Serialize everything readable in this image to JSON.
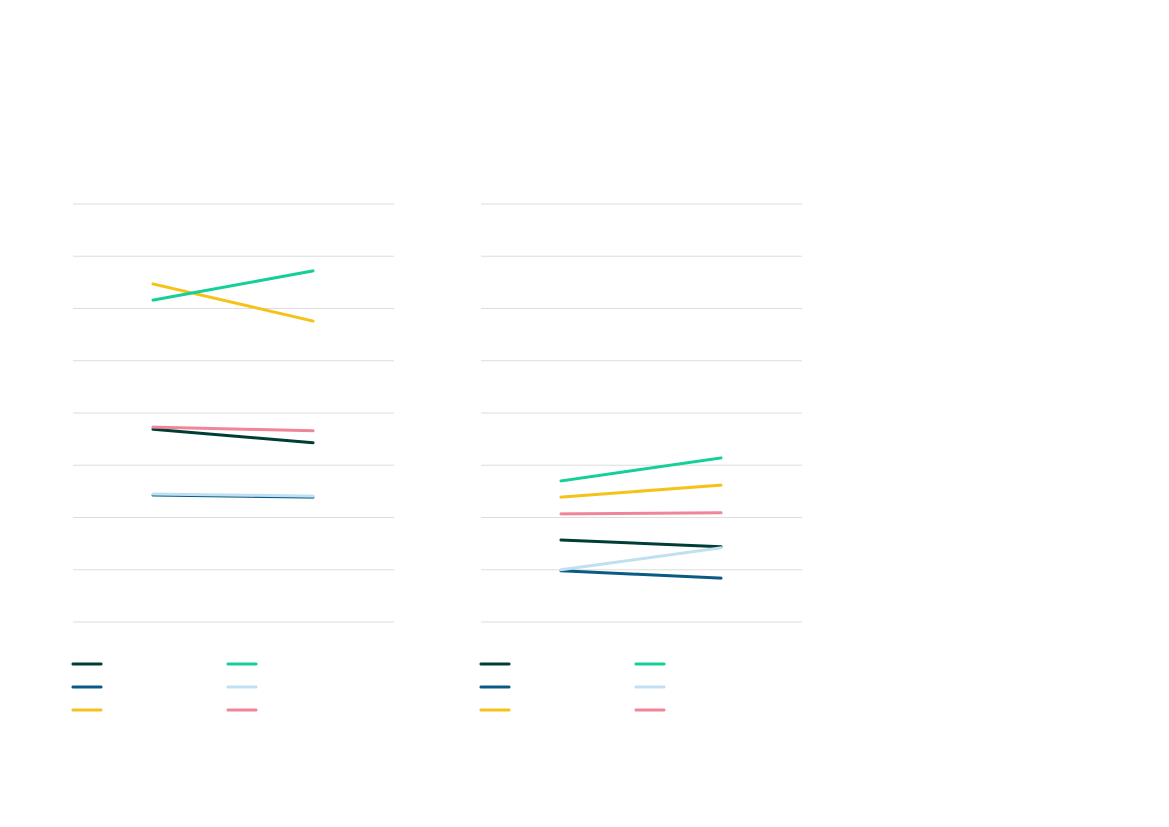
{
  "chart_data": [
    {
      "type": "line",
      "categories": [
        null,
        null
      ],
      "ylim": [
        0,
        8
      ],
      "yticks": [
        0,
        1,
        2,
        3,
        4,
        5,
        6,
        7,
        8
      ],
      "grid": true,
      "legend": "bottom",
      "series": [
        {
          "color": "#003d35",
          "values": [
            3.69,
            3.43
          ]
        },
        {
          "color": "#0a5a85",
          "values": [
            2.43,
            2.39
          ]
        },
        {
          "color": "#f5c21a",
          "values": [
            6.47,
            5.76
          ]
        },
        {
          "color": "#14cf98",
          "values": [
            6.16,
            6.72
          ]
        },
        {
          "color": "#bfe0f2",
          "values": [
            2.45,
            2.41
          ]
        },
        {
          "color": "#f08598",
          "values": [
            3.73,
            3.66
          ]
        }
      ]
    },
    {
      "type": "line",
      "categories": [
        null,
        null
      ],
      "ylim": [
        0,
        8
      ],
      "yticks": [
        0,
        1,
        2,
        3,
        4,
        5,
        6,
        7,
        8
      ],
      "grid": true,
      "legend": "bottom",
      "series": [
        {
          "color": "#003d35",
          "values": [
            1.57,
            1.44
          ]
        },
        {
          "color": "#0a5a85",
          "values": [
            0.98,
            0.84
          ]
        },
        {
          "color": "#f5c21a",
          "values": [
            2.39,
            2.62
          ]
        },
        {
          "color": "#14cf98",
          "values": [
            2.7,
            3.14
          ]
        },
        {
          "color": "#bfe0f2",
          "values": [
            1.0,
            1.42
          ]
        },
        {
          "color": "#f08598",
          "values": [
            2.07,
            2.09
          ]
        }
      ]
    }
  ]
}
